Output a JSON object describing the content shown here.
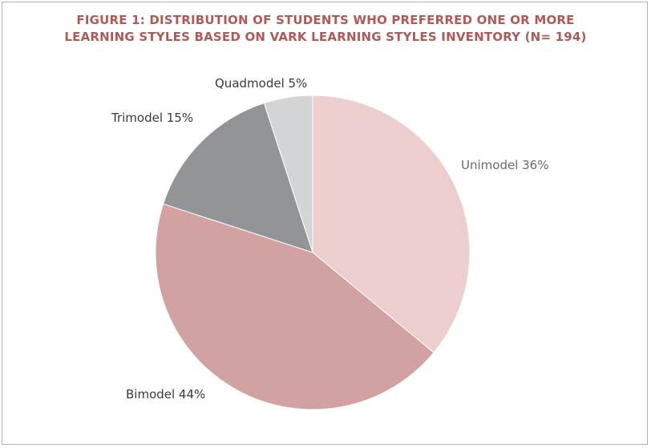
{
  "figure": {
    "title_line1": "FIGURE 1: DISTRIBUTION OF STUDENTS WHO PREFERRED ONE OR MORE",
    "title_line2": "LEARNING STYLES BASED ON VARK LEARNING STYLES INVENTORY (N= 194)"
  },
  "chart_data": {
    "type": "pie",
    "title": "FIGURE 1: DISTRIBUTION OF STUDENTS WHO PREFERRED ONE OR MORE LEARNING STYLES BASED ON VARK LEARNING STYLES INVENTORY (N= 194)",
    "slices": [
      {
        "label": "Unimodel 36%",
        "value": 36,
        "color": "#ebcecd"
      },
      {
        "label": "Bimodel 44%",
        "value": 44,
        "color": "#d2a2a2"
      },
      {
        "label": "Trimodel 15%",
        "value": 15,
        "color": "#929497"
      },
      {
        "label": "Quadmodel 5%",
        "value": 5,
        "color": "#d3d4d6"
      }
    ],
    "start": "12 o'clock",
    "direction": "clockwise",
    "legend": "none (labels beside slices)"
  },
  "colors": {
    "title": "#b05a55",
    "frame_border": "#b9aaa9"
  }
}
